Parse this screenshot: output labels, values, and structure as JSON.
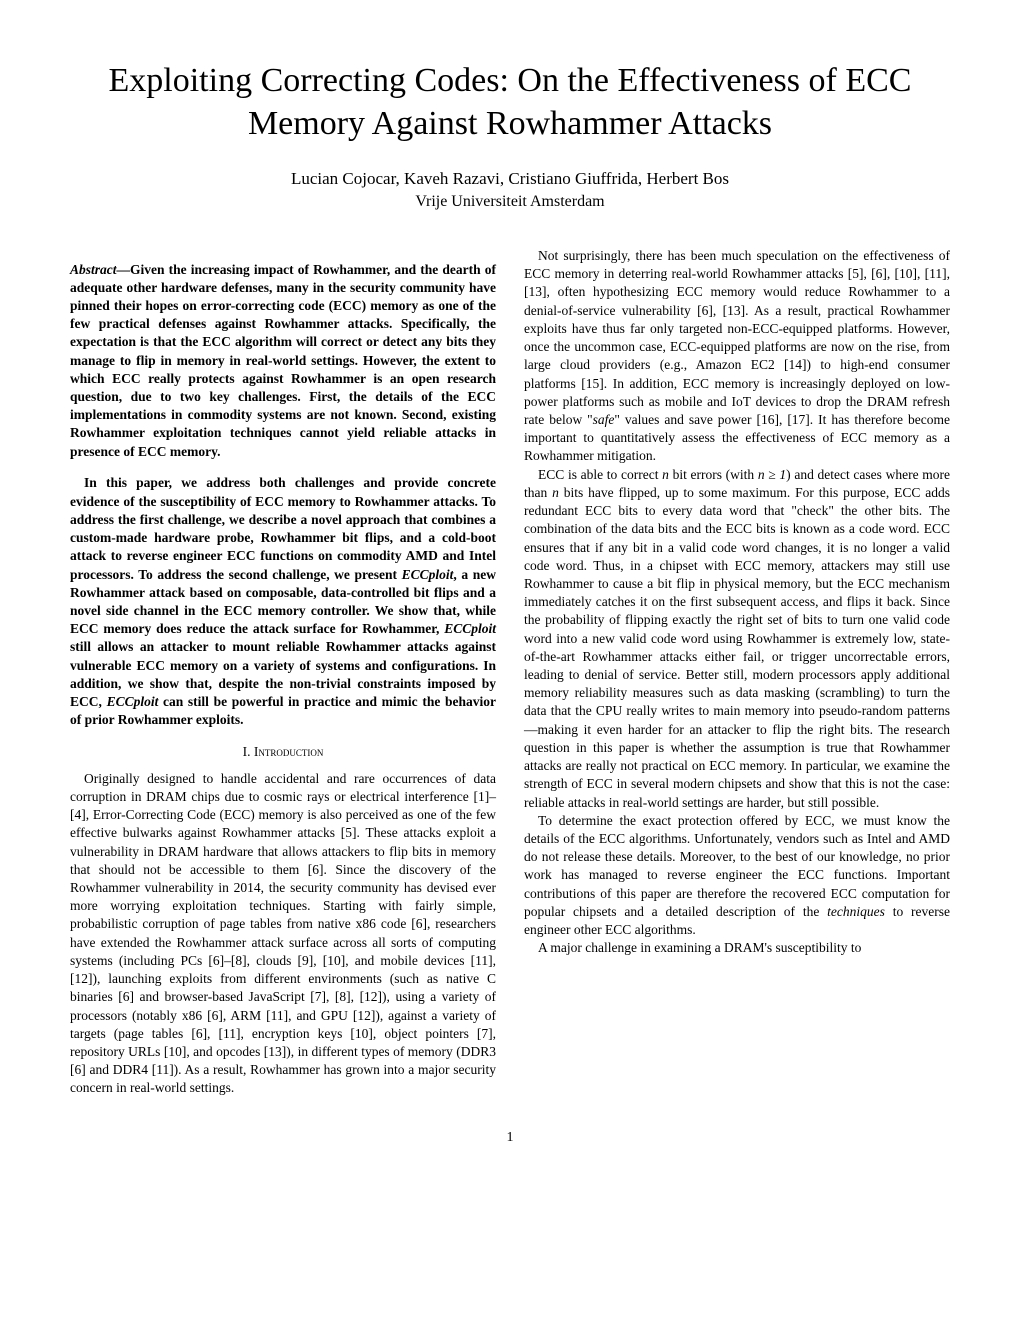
{
  "title": "Exploiting Correcting Codes: On the Effectiveness of ECC Memory Against Rowhammer Attacks",
  "authors": "Lucian Cojocar, Kaveh Razavi, Cristiano Giuffrida, Herbert Bos",
  "affiliation": "Vrije Universiteit Amsterdam",
  "abstractLabel": "Abstract",
  "abstract1": "—Given the increasing impact of Rowhammer, and the dearth of adequate other hardware defenses, many in the security community have pinned their hopes on error-correcting code (ECC) memory as one of the few practical defenses against Rowhammer attacks. Specifically, the expectation is that the ECC algorithm will correct or detect any bits they manage to flip in memory in real-world settings. However, the extent to which ECC really protects against Rowhammer is an open research question, due to two key challenges. First, the details of the ECC implementations in commodity systems are not known. Second, existing Rowhammer exploitation techniques cannot yield reliable attacks in presence of ECC memory.",
  "abstract2a": "In this paper, we address both challenges and provide concrete evidence of the susceptibility of ECC memory to Rowhammer attacks. To address the first challenge, we describe a novel approach that combines a custom-made hardware probe, Rowhammer bit flips, and a cold-boot attack to reverse engineer ECC functions on commodity AMD and Intel processors. To address the second challenge, we present ",
  "abstract2b": "ECCploit",
  "abstract2c": ", a new Rowhammer attack based on composable, data-controlled bit flips and a novel side channel in the ECC memory controller. We show that, while ECC memory does reduce the attack surface for Rowhammer, ",
  "abstract2d": "ECCploit",
  "abstract2e": " still allows an attacker to mount reliable Rowhammer attacks against vulnerable ECC memory on a variety of systems and configurations. In addition, we show that, despite the non-trivial constraints imposed by ECC, ",
  "abstract2f": "ECCploit",
  "abstract2g": " can still be powerful in practice and mimic the behavior of prior Rowhammer exploits.",
  "section1": "I. Introduction",
  "intro1": "Originally designed to handle accidental and rare occurrences of data corruption in DRAM chips due to cosmic rays or electrical interference [1]–[4], Error-Correcting Code (ECC) memory is also perceived as one of the few effective bulwarks against Rowhammer attacks [5]. These attacks exploit a vulnerability in DRAM hardware that allows attackers to flip bits in memory that should not be accessible to them [6]. Since the discovery of the Rowhammer vulnerability in 2014, the security community has devised ever more worrying exploitation techniques. Starting with fairly simple, probabilistic corruption of page tables from native x86 code [6], researchers have extended the Rowhammer attack surface across all sorts of computing systems (including PCs [6]–[8], clouds [9], [10], and mobile devices [11], [12]), launching exploits from different environments (such as native C binaries [6] and browser-based JavaScript [7], [8], [12]), using a variety of processors (notably x86 [6], ARM [11], and GPU [12]), against a variety of targets (page tables [6], [11], encryption keys [10], object pointers [7], repository URLs [10], and opcodes [13]), in different types of memory (DDR3 [6] and DDR4 [11]). As a result, Rowhammer has grown into a major security concern in real-world settings.",
  "col2p1a": "Not surprisingly, there has been much speculation on the effectiveness of ECC memory in deterring real-world Rowhammer attacks [5], [6], [10], [11], [13], often hypothesizing ECC memory would reduce Rowhammer to a denial-of-service vulnerability [6], [13]. As a result, practical Rowhammer exploits have thus far only targeted non-ECC-equipped platforms. However, once the uncommon case, ECC-equipped platforms are now on the rise, from large cloud providers (e.g., Amazon EC2 [14]) to high-end consumer platforms [15]. In addition, ECC memory is increasingly deployed on low-power platforms such as mobile and IoT devices to drop the DRAM refresh rate below \"",
  "col2p1b": "safe",
  "col2p1c": "\" values and save power [16], [17]. It has therefore become important to quantitatively assess the effectiveness of ECC memory as a Rowhammer mitigation.",
  "col2p2a": "ECC is able to correct ",
  "col2p2b": "n",
  "col2p2c": " bit errors (with ",
  "col2p2d": "n ≥ 1",
  "col2p2e": ") and detect cases where more than ",
  "col2p2f": "n",
  "col2p2g": " bits have flipped, up to some maximum. For this purpose, ECC adds redundant ECC bits to every data word that \"check\" the other bits. The combination of the data bits and the ECC bits is known as a code word. ECC ensures that if any bit in a valid code word changes, it is no longer a valid code word. Thus, in a chipset with ECC memory, attackers may still use Rowhammer to cause a bit flip in physical memory, but the ECC mechanism immediately catches it on the first subsequent access, and flips it back. Since the probability of flipping exactly the right set of bits to turn one valid code word into a new valid code word using Rowhammer is extremely low, state-of-the-art Rowhammer attacks either fail, or trigger uncorrectable errors, leading to denial of service. Better still, modern processors apply additional memory reliability measures such as data masking (scrambling) to turn the data that the CPU really writes to main memory into pseudo-random patterns—making it even harder for an attacker to flip the right bits. The research question in this paper is whether the assumption is true that Rowhammer attacks are really not practical on ECC memory. In particular, we examine the strength of ECC in several modern chipsets and show that this is not the case: reliable attacks in real-world settings are harder, but still possible.",
  "col2p3a": "To determine the exact protection offered by ECC, we must know the details of the ECC algorithms. Unfortunately, vendors such as Intel and AMD do not release these details. Moreover, to the best of our knowledge, no prior work has managed to reverse engineer the ECC functions. Important contributions of this paper are therefore the recovered ECC computation for popular chipsets and a detailed description of the ",
  "col2p3b": "techniques",
  "col2p3c": " to reverse engineer other ECC algorithms.",
  "col2p4": "A major challenge in examining a DRAM's susceptibility to",
  "pageNumber": "1"
}
